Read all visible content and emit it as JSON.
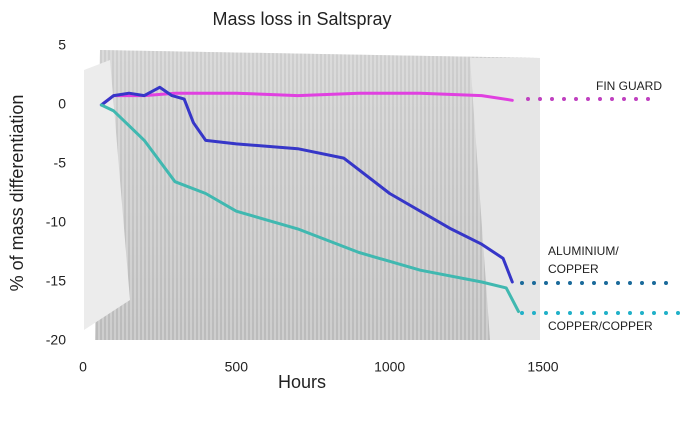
{
  "chart_data": {
    "type": "line",
    "title": "Mass loss in Saltspray",
    "xlabel": "Hours",
    "ylabel": "% of mass differentiation",
    "xlim": [
      0,
      1500
    ],
    "xticks": [
      0,
      500,
      1000,
      1500
    ],
    "ylim": [
      -20,
      5
    ],
    "yticks": [
      5,
      0,
      -5,
      -10,
      -15,
      -20
    ],
    "grid": false,
    "series": [
      {
        "color": "#e040e0",
        "x": [
          60,
          100,
          200,
          300,
          500,
          700,
          900,
          1100,
          1300,
          1400
        ],
        "values": [
          0,
          0.8,
          0.8,
          1.0,
          1.0,
          0.8,
          1.0,
          1.0,
          0.8,
          0.4
        ]
      },
      {
        "color": "#3636c8",
        "x": [
          60,
          100,
          150,
          200,
          250,
          290,
          330,
          360,
          400,
          500,
          700,
          850,
          1000,
          1200,
          1300,
          1370,
          1400
        ],
        "values": [
          0,
          0.8,
          1.0,
          0.8,
          1.5,
          0.8,
          0.5,
          -1.5,
          -3,
          -3.3,
          -3.7,
          -4.5,
          -7.5,
          -10.5,
          -11.8,
          -13,
          -15
        ]
      },
      {
        "color": "#40b8b0",
        "x": [
          60,
          100,
          200,
          300,
          400,
          500,
          700,
          900,
          1100,
          1300,
          1380,
          1420
        ],
        "values": [
          0,
          -0.5,
          -3,
          -6.5,
          -7.5,
          -9,
          -10.5,
          -12.5,
          -14,
          -15,
          -15.5,
          -17.5
        ]
      }
    ],
    "annotations": [
      {
        "lines": [
          "FIN GUARD"
        ],
        "color": "#c040c0"
      },
      {
        "lines": [
          "ALUMINIUM/",
          "COPPER"
        ],
        "color": "#1a6a9a"
      },
      {
        "lines": [
          "COPPER/COPPER"
        ],
        "color": "#20b0c8"
      }
    ]
  }
}
